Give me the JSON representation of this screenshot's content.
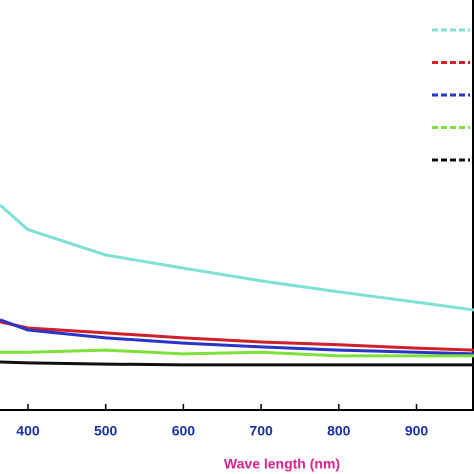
{
  "chart_data": {
    "type": "line",
    "x_label": "Wave length (nm)",
    "x": [
      364,
      400,
      500,
      600,
      700,
      800,
      900,
      974
    ],
    "xlim": [
      364,
      974
    ],
    "xticks": [
      400,
      500,
      600,
      700,
      800,
      900
    ],
    "ylim": [
      0,
      100
    ],
    "series": [
      {
        "color": "#7fe0d6",
        "values": [
          50,
          44,
          37.8,
          34.6,
          31.5,
          28.8,
          26.3,
          24.4
        ]
      },
      {
        "color": "#d0202a",
        "values": [
          21.5,
          20,
          18.8,
          17.6,
          16.6,
          15.9,
          15.1,
          14.6
        ]
      },
      {
        "color": "#2a35c8",
        "values": [
          22,
          19.5,
          17.6,
          16.3,
          15.4,
          14.6,
          14.1,
          13.7
        ]
      },
      {
        "color": "#7ee03a",
        "values": [
          14.1,
          14.1,
          14.6,
          13.7,
          14.1,
          13.2,
          13.2,
          13.2
        ]
      },
      {
        "color": "#111111",
        "values": [
          11.7,
          11.5,
          11.2,
          11,
          11,
          11,
          11,
          11
        ]
      }
    ]
  }
}
